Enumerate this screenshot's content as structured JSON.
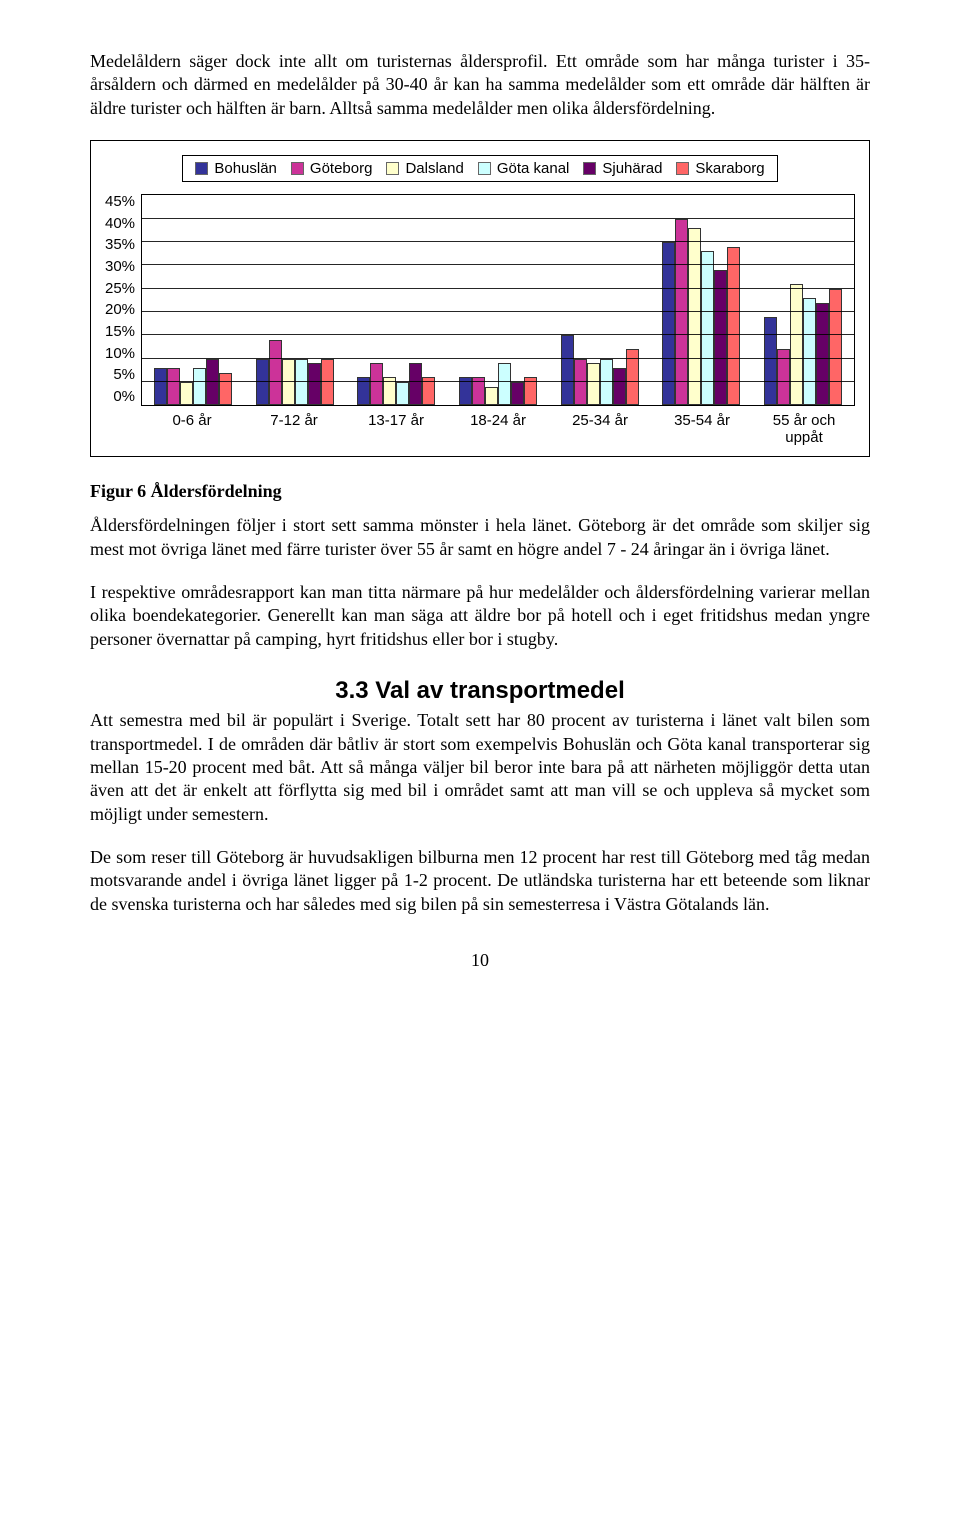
{
  "para1": "Medelåldern säger dock inte allt om turisternas åldersprofil. Ett område som har många turister i 35-årsåldern och därmed en medelålder på 30-40 år kan ha samma medelålder som ett område där hälften är äldre turister och hälften är barn. Alltså samma medelålder men olika åldersfördelning.",
  "chart": {
    "type": "bar",
    "series": [
      {
        "label": "Bohuslän",
        "color": "#333399"
      },
      {
        "label": "Göteborg",
        "color": "#cc3399"
      },
      {
        "label": "Dalsland",
        "color": "#ffffcc"
      },
      {
        "label": "Göta kanal",
        "color": "#ccffff"
      },
      {
        "label": "Sjuhärad",
        "color": "#660066"
      },
      {
        "label": "Skaraborg",
        "color": "#ff6666"
      }
    ],
    "categories": [
      "0-6 år",
      "7-12 år",
      "13-17 år",
      "18-24 år",
      "25-34 år",
      "35-54 år",
      "55 år och uppåt"
    ],
    "values": [
      [
        8,
        8,
        5,
        8,
        10,
        7
      ],
      [
        10,
        14,
        10,
        10,
        9,
        10
      ],
      [
        6,
        9,
        6,
        5,
        9,
        6
      ],
      [
        6,
        6,
        4,
        9,
        5,
        6
      ],
      [
        15,
        10,
        9,
        10,
        8,
        12
      ],
      [
        35,
        40,
        38,
        33,
        29,
        34
      ],
      [
        19,
        12,
        26,
        23,
        22,
        25
      ]
    ],
    "ymax": 45,
    "ystep": 5,
    "background": "#ffffff",
    "grid_color": "#000000",
    "font_family": "Arial",
    "tick_fontsize": 15
  },
  "figcaption": "Figur 6 Åldersfördelning",
  "para2": "Åldersfördelningen följer i stort sett samma mönster i hela länet. Göteborg är det område som skiljer sig mest mot övriga länet med färre turister över 55 år samt en högre andel 7 - 24 åringar än i övriga länet.",
  "para3": "I respektive områdesrapport kan man titta närmare på hur medelålder och åldersfördelning varierar mellan olika boendekategorier. Generellt kan man säga att äldre bor på hotell och i eget fritidshus medan yngre personer övernattar på camping, hyrt fritidshus eller bor i stugby.",
  "h2": "3.3  Val av transportmedel",
  "para4": "Att semestra med bil är populärt i Sverige. Totalt sett har 80 procent av turisterna i länet valt bilen som transportmedel. I de områden där båtliv är stort som exempelvis Bohuslän och Göta kanal transporterar sig mellan 15-20 procent med båt. Att så många väljer bil beror inte bara på att närheten möjliggör detta utan även att det är enkelt att förflytta sig med bil i området samt att man vill se och uppleva så mycket som möjligt under semestern.",
  "para5": "De som reser till Göteborg är huvudsakligen bilburna men 12 procent har rest till Göteborg med tåg medan motsvarande andel i övriga länet ligger på 1-2 procent. De utländska turisterna har ett beteende som liknar de svenska turisterna och har således med sig bilen på sin semesterresa i Västra Götalands län.",
  "pagenum": "10"
}
